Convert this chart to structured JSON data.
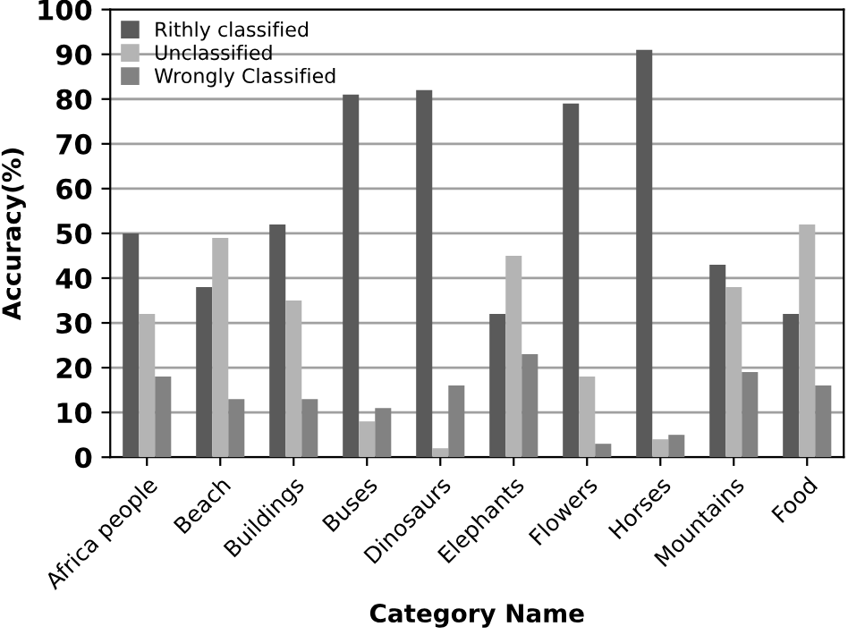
{
  "chart_data": {
    "type": "bar",
    "xlabel": "Category Name",
    "ylabel": "Accuracy(%)",
    "categories": [
      "Africa people",
      "Beach",
      "Buildings",
      "Buses",
      "Dinosaurs",
      "Elephants",
      "Flowers",
      "Horses",
      "Mountains",
      "Food"
    ],
    "series": [
      {
        "name": "Rithly classified",
        "color": "#5a5a5a",
        "values": [
          50,
          38,
          52,
          81,
          82,
          32,
          79,
          91,
          43,
          32
        ]
      },
      {
        "name": "Unclassified",
        "color": "#b4b4b4",
        "values": [
          32,
          49,
          35,
          8,
          2,
          45,
          18,
          4,
          38,
          52
        ]
      },
      {
        "name": "Wrongly Classified",
        "color": "#828282",
        "values": [
          18,
          13,
          13,
          11,
          16,
          23,
          3,
          5,
          19,
          16
        ]
      }
    ],
    "ylim": [
      0,
      100
    ],
    "yticks": [
      0,
      10,
      20,
      30,
      40,
      50,
      60,
      70,
      80,
      90,
      100
    ],
    "grid": "y",
    "legend": "top left"
  }
}
